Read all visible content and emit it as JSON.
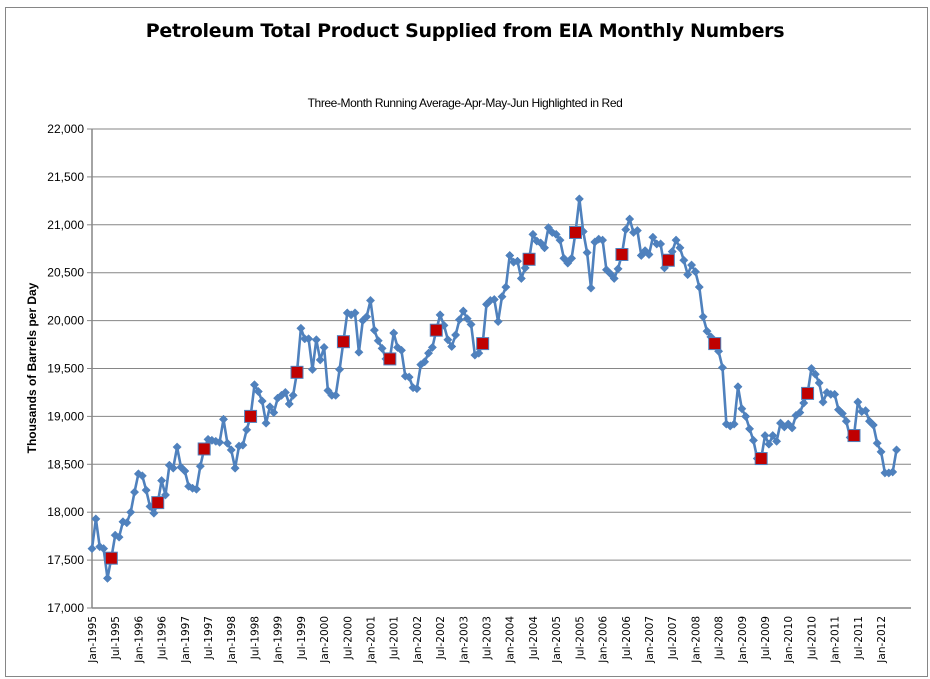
{
  "chart_data": {
    "type": "line",
    "title": "Petroleum Total Product Supplied from EIA Monthly Numbers",
    "subtitle": "Three-Month Running Average-Apr-May-Jun Highlighted in Red",
    "xlabel": "",
    "ylabel": "Thousands of Barrels per Day",
    "ylim": [
      17000,
      22000
    ],
    "y_ticks": [
      17000,
      17500,
      18000,
      18500,
      19000,
      19500,
      20000,
      20500,
      21000,
      21500,
      22000
    ],
    "y_tick_labels": [
      "17,000",
      "17,500",
      "18,000",
      "18,500",
      "19,000",
      "19,500",
      "20,000",
      "20,500",
      "21,000",
      "21,500",
      "22,000"
    ],
    "x_tick_labels": [
      "Jan-1995",
      "Jul-1995",
      "Jan-1996",
      "Jul-1996",
      "Jan-1997",
      "Jul-1997",
      "Jan-1998",
      "Jul-1998",
      "Jan-1999",
      "Jul-1999",
      "Jan-2000",
      "Jul-2000",
      "Jan-2001",
      "Jul-2001",
      "Jan-2002",
      "Jul-2002",
      "Jan-2003",
      "Jul-2003",
      "Jan-2004",
      "Jul-2004",
      "Jan-2005",
      "Jul-2005",
      "Jan-2006",
      "Jul-2006",
      "Jan-2007",
      "Jul-2007",
      "Jan-2008",
      "Jul-2008",
      "Jan-2009",
      "Jul-2009",
      "Jan-2010",
      "Jul-2010",
      "Jan-2011",
      "Jul-2011",
      "Jan-2012"
    ],
    "x_start": "Jan-1995",
    "x_interval": "monthly",
    "grid": true,
    "legend": "none",
    "series": [
      {
        "name": "Three-Month Running Average",
        "color": "#4F81BD",
        "marker": "diamond",
        "values": [
          17620,
          17930,
          17640,
          17620,
          17310,
          17520,
          17760,
          17740,
          17900,
          17890,
          18000,
          18210,
          18400,
          18380,
          18230,
          18060,
          17990,
          18100,
          18330,
          18180,
          18490,
          18460,
          18680,
          18470,
          18430,
          18270,
          18250,
          18240,
          18480,
          18660,
          18760,
          18750,
          18740,
          18730,
          18970,
          18720,
          18650,
          18460,
          18690,
          18700,
          18860,
          19000,
          19330,
          19260,
          19160,
          18930,
          19100,
          19040,
          19190,
          19220,
          19250,
          19130,
          19220,
          19460,
          19920,
          19810,
          19810,
          19490,
          19800,
          19590,
          19720,
          19270,
          19220,
          19220,
          19490,
          19780,
          20080,
          20060,
          20080,
          19670,
          20000,
          20040,
          20210,
          19900,
          19790,
          19710,
          19600,
          19600,
          19870,
          19720,
          19690,
          19420,
          19410,
          19300,
          19290,
          19540,
          19570,
          19660,
          19720,
          19900,
          20060,
          19950,
          19800,
          19730,
          19850,
          20010,
          20100,
          20020,
          19960,
          19640,
          19660,
          19760,
          20170,
          20210,
          20220,
          19990,
          20250,
          20350,
          20680,
          20610,
          20620,
          20440,
          20550,
          20640,
          20900,
          20830,
          20810,
          20760,
          20970,
          20920,
          20900,
          20840,
          20650,
          20600,
          20650,
          20920,
          21270,
          20930,
          20710,
          20340,
          20820,
          20850,
          20840,
          20530,
          20490,
          20440,
          20540,
          20690,
          20950,
          21060,
          20920,
          20940,
          20680,
          20730,
          20690,
          20870,
          20800,
          20800,
          20550,
          20630,
          20720,
          20840,
          20760,
          20630,
          20480,
          20580,
          20510,
          20350,
          20040,
          19890,
          19830,
          19760,
          19680,
          19510,
          18920,
          18900,
          18920,
          19310,
          19080,
          19000,
          18870,
          18750,
          18560,
          18560,
          18800,
          18710,
          18800,
          18740,
          18930,
          18890,
          18920,
          18880,
          19010,
          19040,
          19140,
          19240,
          19500,
          19440,
          19350,
          19150,
          19250,
          19230,
          19230,
          19070,
          19030,
          18950,
          18780,
          18800,
          19150,
          19050,
          19060,
          18950,
          18910,
          18720,
          18630,
          18410,
          18410,
          18420,
          18650
        ]
      }
    ],
    "highlight": {
      "name": "Apr-May-Jun",
      "color": "#C00000",
      "marker": "square",
      "month_index": 5
    }
  }
}
